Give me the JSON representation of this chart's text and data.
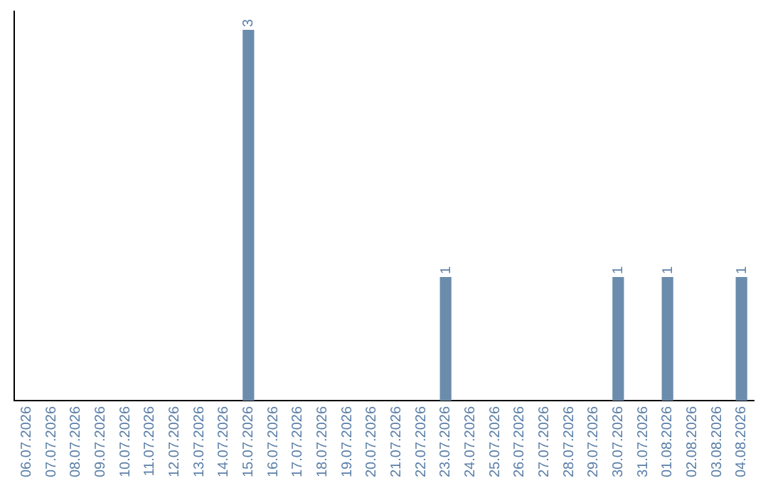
{
  "chart_data": {
    "type": "bar",
    "categories": [
      "06.07.2026",
      "07.07.2026",
      "08.07.2026",
      "09.07.2026",
      "10.07.2026",
      "11.07.2026",
      "12.07.2026",
      "13.07.2026",
      "14.07.2026",
      "15.07.2026",
      "16.07.2026",
      "17.07.2026",
      "18.07.2026",
      "19.07.2026",
      "20.07.2026",
      "21.07.2026",
      "22.07.2026",
      "23.07.2026",
      "24.07.2026",
      "25.07.2026",
      "26.07.2026",
      "27.07.2026",
      "28.07.2026",
      "29.07.2026",
      "30.07.2026",
      "31.07.2026",
      "01.08.2026",
      "02.08.2026",
      "03.08.2026",
      "04.08.2026"
    ],
    "values": [
      0,
      0,
      0,
      0,
      0,
      0,
      0,
      0,
      0,
      3,
      0,
      0,
      0,
      0,
      0,
      0,
      0,
      1,
      0,
      0,
      0,
      0,
      0,
      0,
      1,
      0,
      1,
      0,
      0,
      1
    ],
    "value_labels": [
      null,
      null,
      null,
      null,
      null,
      null,
      null,
      null,
      null,
      "3",
      null,
      null,
      null,
      null,
      null,
      null,
      null,
      "1",
      null,
      null,
      null,
      null,
      null,
      null,
      "1",
      null,
      "1",
      null,
      null,
      "1"
    ],
    "color": "#6b8cac",
    "ylim": [
      0,
      3.15
    ],
    "tick_labels": "x",
    "grid": false,
    "legend": false
  }
}
